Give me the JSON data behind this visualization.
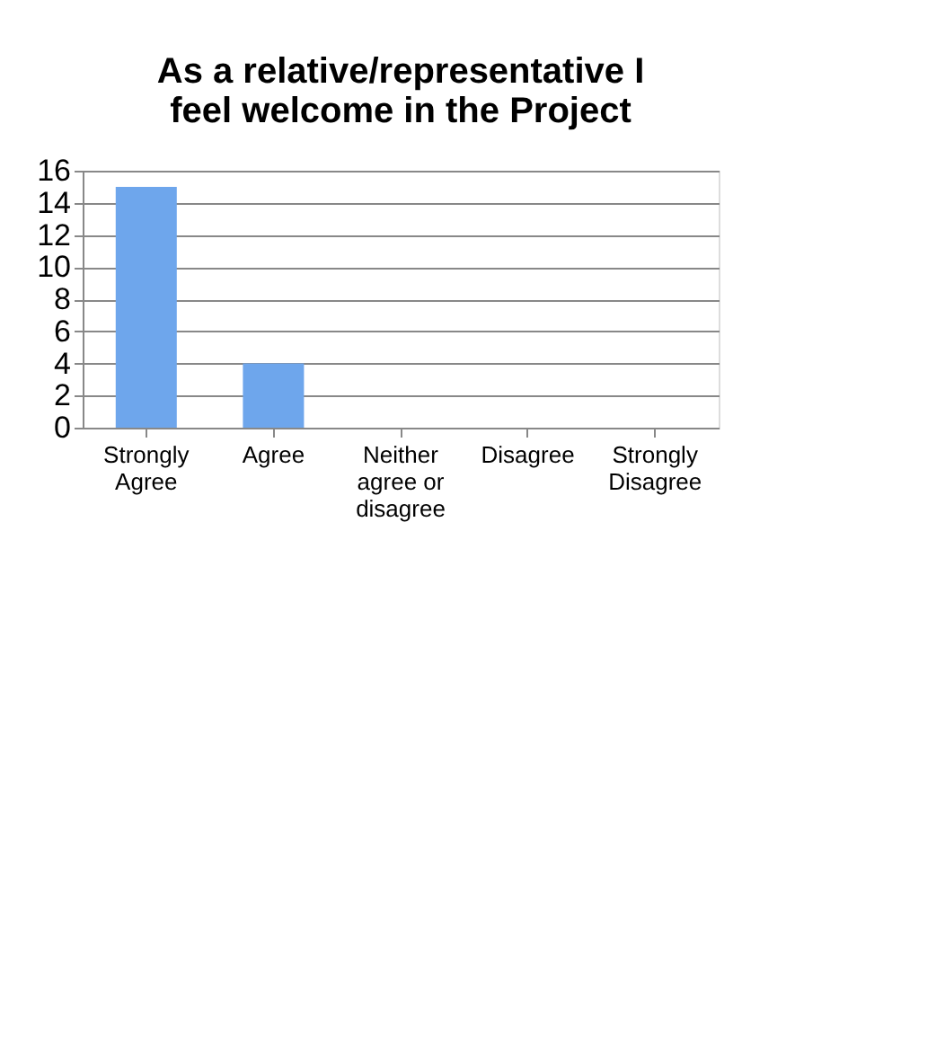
{
  "chart_data": {
    "type": "bar",
    "title": "As a relative/representative I feel welcome in the Project",
    "categories": [
      "Strongly Agree",
      "Agree",
      "Neither agree or disagree",
      "Disagree",
      "Strongly Disagree"
    ],
    "values": [
      15,
      4,
      0,
      0,
      0
    ],
    "color": "#6ea6ec",
    "ylim": [
      0,
      16
    ],
    "yticks": [
      0,
      2,
      4,
      6,
      8,
      10,
      12,
      14,
      16
    ],
    "grid": "y"
  }
}
